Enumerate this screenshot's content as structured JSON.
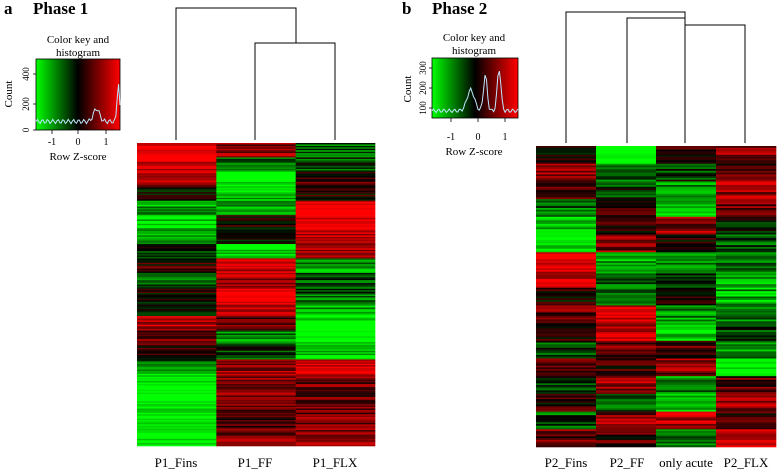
{
  "panels": [
    {
      "letter": "a",
      "title": "Phase 1",
      "key_title_line1": "Color key and",
      "key_title_line2": "histogram",
      "key_ylabel": "Count",
      "key_xlabel": "Row Z-score",
      "key_x_ticks": [
        "-1",
        "0",
        "1"
      ],
      "key_y_ticks": [
        "0",
        "200",
        "400"
      ],
      "colors": {
        "low": "#00ff00",
        "mid": "#000000",
        "high": "#ff0000"
      }
    },
    {
      "letter": "b",
      "title": "Phase 2",
      "key_title_line1": "Color key and",
      "key_title_line2": "histogram",
      "key_ylabel": "Count",
      "key_xlabel": "Row Z-score",
      "key_x_ticks": [
        "-1",
        "0",
        "1"
      ],
      "key_y_ticks": [
        "100",
        "200",
        "300"
      ],
      "colors": {
        "low": "#00ff00",
        "mid": "#000000",
        "high": "#ff0000"
      }
    }
  ],
  "chart_data": [
    {
      "type": "heatmap",
      "title": "Phase 1",
      "columns": [
        "P1_Fins",
        "P1_FF",
        "P1_FLX"
      ],
      "color_scale": {
        "z_min": -1.5,
        "z_max": 1.5,
        "low": "#00ff00",
        "mid": "#000000",
        "high": "#ff0000"
      },
      "rows_per_block": 10,
      "blocks": [
        {
          "seg": [
            1.6,
            0.8,
            -0.6
          ]
        },
        {
          "seg": [
            1.3,
            -0.7,
            -0.4
          ]
        },
        {
          "seg": [
            0.9,
            -1.5,
            0.3
          ]
        },
        {
          "seg": [
            0.1,
            -1.2,
            0.2
          ]
        },
        {
          "seg": [
            -0.9,
            -1.0,
            1.6
          ]
        },
        {
          "seg": [
            -1.3,
            0.2,
            1.5
          ]
        },
        {
          "seg": [
            -1.1,
            -0.2,
            1.2
          ]
        },
        {
          "seg": [
            -0.2,
            -1.3,
            0.9
          ]
        },
        {
          "seg": [
            0.3,
            1.3,
            -0.8
          ]
        },
        {
          "seg": [
            -0.5,
            1.0,
            -0.4
          ]
        },
        {
          "seg": [
            0.2,
            1.4,
            -0.6
          ]
        },
        {
          "seg": [
            -0.3,
            1.2,
            -1.0
          ]
        },
        {
          "seg": [
            1.0,
            0.6,
            -1.5
          ]
        },
        {
          "seg": [
            0.7,
            -0.8,
            -1.6
          ]
        },
        {
          "seg": [
            0.1,
            -0.3,
            -1.2
          ]
        },
        {
          "seg": [
            -0.6,
            0.9,
            1.4
          ]
        },
        {
          "seg": [
            -1.6,
            0.8,
            0.6
          ]
        },
        {
          "seg": [
            -1.7,
            0.7,
            0.5
          ]
        },
        {
          "seg": [
            -1.6,
            0.6,
            0.6
          ]
        },
        {
          "seg": [
            -1.7,
            0.5,
            0.7
          ]
        },
        {
          "seg": [
            -1.6,
            0.7,
            0.8
          ]
        }
      ],
      "dendrogram": {
        "merges": [
          [
            "P1_FF",
            "P1_FLX"
          ],
          [
            "P1_Fins",
            "P1_FF+P1_FLX"
          ]
        ]
      }
    },
    {
      "type": "heatmap",
      "title": "Phase 2",
      "columns": [
        "P2_Fins",
        "P2_FF",
        "only acute",
        "P2_FLX"
      ],
      "color_scale": {
        "z_min": -1.5,
        "z_max": 1.5,
        "low": "#00ff00",
        "mid": "#000000",
        "high": "#ff0000"
      },
      "rows_per_block": 10,
      "blocks": [
        {
          "seg": [
            0.3,
            -1.6,
            0.2,
            0.7
          ]
        },
        {
          "seg": [
            0.9,
            -0.7,
            -0.3,
            0.4
          ]
        },
        {
          "seg": [
            0.5,
            -0.3,
            -0.8,
            0.9
          ]
        },
        {
          "seg": [
            -0.6,
            0.4,
            -1.1,
            0.6
          ]
        },
        {
          "seg": [
            -1.2,
            0.3,
            0.8,
            -0.2
          ]
        },
        {
          "seg": [
            -1.5,
            0.7,
            0.1,
            -0.5
          ]
        },
        {
          "seg": [
            1.5,
            -0.9,
            -0.6,
            -0.7
          ]
        },
        {
          "seg": [
            1.3,
            -0.6,
            -0.3,
            -0.9
          ]
        },
        {
          "seg": [
            0.2,
            -0.5,
            0.3,
            -1.0
          ]
        },
        {
          "seg": [
            0.6,
            1.4,
            -0.9,
            -0.6
          ]
        },
        {
          "seg": [
            0.3,
            1.1,
            -1.3,
            -0.4
          ]
        },
        {
          "seg": [
            -0.4,
            0.6,
            0.4,
            -0.8
          ]
        },
        {
          "seg": [
            0.5,
            0.2,
            0.7,
            -1.2
          ]
        },
        {
          "seg": [
            -0.3,
            0.9,
            -0.8,
            0.5
          ]
        },
        {
          "seg": [
            0.2,
            -0.4,
            -1.2,
            0.9
          ]
        },
        {
          "seg": [
            -0.5,
            0.8,
            1.1,
            0.4
          ]
        },
        {
          "seg": [
            0.6,
            0.3,
            -0.5,
            1.3
          ]
        }
      ],
      "dendrogram": {
        "merges": [
          [
            "only acute",
            "P2_FLX"
          ],
          [
            "P2_FF",
            "only acute+P2_FLX"
          ],
          [
            "P2_Fins",
            "P2_FF+only acute+P2_FLX"
          ]
        ]
      }
    }
  ]
}
